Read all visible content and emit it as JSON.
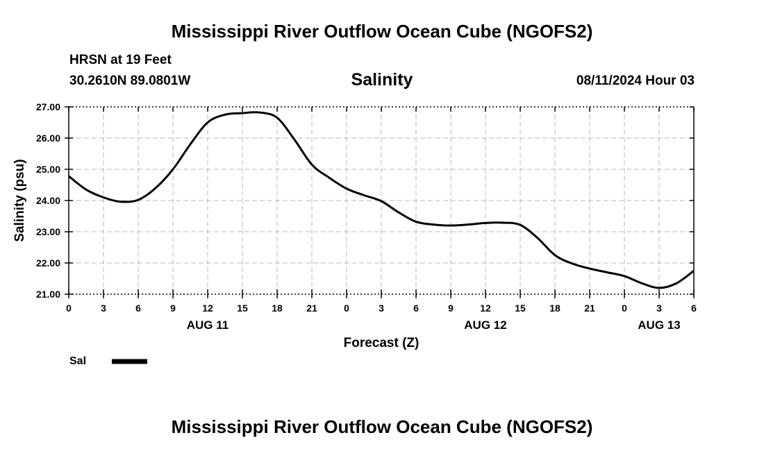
{
  "header": {
    "title": "Mississippi River Outflow Ocean Cube (NGOFS2)",
    "station": "HRSN at 19 Feet",
    "coords": "30.2610N  89.0801W",
    "datetime": "08/11/2024 Hour 03"
  },
  "footer": {
    "title": "Mississippi River Outflow Ocean Cube (NGOFS2)"
  },
  "chart_data": {
    "type": "line",
    "title": "Salinity",
    "xlabel": "Forecast (Z)",
    "ylabel": "Salinity (psu)",
    "xlim": [
      0,
      54
    ],
    "ylim": [
      21.0,
      27.0
    ],
    "x_ticks": [
      0,
      3,
      6,
      9,
      12,
      15,
      18,
      21,
      24,
      27,
      30,
      33,
      36,
      39,
      42,
      45,
      48,
      51,
      54
    ],
    "x_tick_labels": [
      "0",
      "3",
      "6",
      "9",
      "12",
      "15",
      "18",
      "21",
      "0",
      "3",
      "6",
      "9",
      "12",
      "15",
      "18",
      "21",
      "0",
      "3",
      "6"
    ],
    "y_ticks": [
      21.0,
      22.0,
      23.0,
      24.0,
      25.0,
      26.0,
      27.0
    ],
    "y_tick_labels": [
      "21.00",
      "22.00",
      "23.00",
      "24.00",
      "25.00",
      "26.00",
      "27.00"
    ],
    "day_labels": [
      {
        "x": 12,
        "label": "AUG 11"
      },
      {
        "x": 36,
        "label": "AUG 12"
      },
      {
        "x": 51,
        "label": "AUG 13"
      }
    ],
    "grid": true,
    "legend": {
      "position": "bottom-left",
      "entries": [
        {
          "name": "Sal",
          "color": "#000000"
        }
      ]
    },
    "series": [
      {
        "name": "Sal",
        "color": "#000000",
        "x": [
          0,
          1.5,
          3,
          4.5,
          6,
          7.5,
          9,
          10.5,
          12,
          13.5,
          15,
          16.5,
          18,
          19.5,
          21,
          22.5,
          24,
          25.5,
          27,
          28.5,
          30,
          31.5,
          33,
          34.5,
          36,
          37.5,
          39,
          40.5,
          42,
          43.5,
          45,
          46.5,
          48,
          49.5,
          51,
          52.5,
          54
        ],
        "values": [
          24.78,
          24.35,
          24.1,
          23.96,
          24.02,
          24.4,
          25.0,
          25.8,
          26.5,
          26.75,
          26.8,
          26.82,
          26.65,
          25.95,
          25.15,
          24.73,
          24.38,
          24.17,
          23.98,
          23.62,
          23.32,
          23.23,
          23.2,
          23.23,
          23.28,
          23.29,
          23.22,
          22.8,
          22.25,
          21.98,
          21.82,
          21.7,
          21.58,
          21.35,
          21.2,
          21.35,
          21.75
        ]
      }
    ]
  }
}
